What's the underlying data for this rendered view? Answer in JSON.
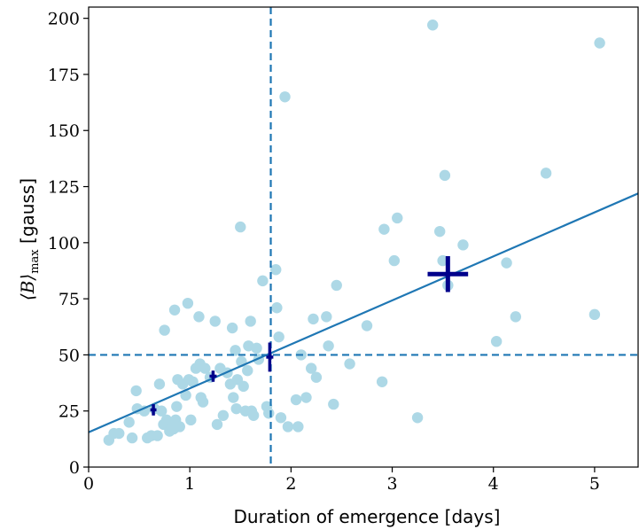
{
  "chart_data": {
    "type": "scatter",
    "xlabel": "Duration of emergence [days]",
    "ylabel": {
      "main": "⟨B⟩",
      "sub": "max",
      "unit": " [gauss]"
    },
    "xlim": [
      0,
      5.43
    ],
    "ylim": [
      0,
      205
    ],
    "xticks": [
      0,
      1,
      2,
      3,
      4,
      5
    ],
    "yticks": [
      0,
      25,
      50,
      75,
      100,
      125,
      150,
      175,
      200
    ],
    "grid": false,
    "colors": {
      "points": "#add8e6",
      "fit_line": "#1f77b4",
      "threshold_lines": "#1f77b4",
      "error_bars": "#00008b",
      "axes": "#000000"
    },
    "points": [
      [
        0.2,
        12
      ],
      [
        0.25,
        15
      ],
      [
        0.3,
        15
      ],
      [
        0.4,
        20
      ],
      [
        0.43,
        13
      ],
      [
        0.47,
        34
      ],
      [
        0.48,
        26
      ],
      [
        0.55,
        25
      ],
      [
        0.58,
        13
      ],
      [
        0.62,
        14
      ],
      [
        0.65,
        26
      ],
      [
        0.68,
        14
      ],
      [
        0.7,
        37
      ],
      [
        0.72,
        25
      ],
      [
        0.74,
        19
      ],
      [
        0.75,
        61
      ],
      [
        0.77,
        21
      ],
      [
        0.8,
        16
      ],
      [
        0.82,
        18
      ],
      [
        0.84,
        17
      ],
      [
        0.85,
        70
      ],
      [
        0.86,
        21
      ],
      [
        0.87,
        27
      ],
      [
        0.88,
        39
      ],
      [
        0.9,
        18
      ],
      [
        0.93,
        37
      ],
      [
        0.96,
        32
      ],
      [
        0.98,
        73
      ],
      [
        0.99,
        39
      ],
      [
        1.01,
        21
      ],
      [
        1.03,
        38
      ],
      [
        1.06,
        44
      ],
      [
        1.09,
        67
      ],
      [
        1.1,
        46
      ],
      [
        1.11,
        31
      ],
      [
        1.13,
        29
      ],
      [
        1.15,
        44
      ],
      [
        1.2,
        40
      ],
      [
        1.25,
        65
      ],
      [
        1.27,
        19
      ],
      [
        1.3,
        44
      ],
      [
        1.33,
        23
      ],
      [
        1.37,
        42
      ],
      [
        1.4,
        37
      ],
      [
        1.42,
        62
      ],
      [
        1.43,
        31
      ],
      [
        1.45,
        52
      ],
      [
        1.46,
        26
      ],
      [
        1.47,
        39
      ],
      [
        1.5,
        107
      ],
      [
        1.51,
        47
      ],
      [
        1.53,
        36
      ],
      [
        1.55,
        25
      ],
      [
        1.57,
        43
      ],
      [
        1.58,
        54
      ],
      [
        1.6,
        65
      ],
      [
        1.61,
        25
      ],
      [
        1.63,
        23
      ],
      [
        1.66,
        53
      ],
      [
        1.68,
        48
      ],
      [
        1.72,
        83
      ],
      [
        1.76,
        27
      ],
      [
        1.78,
        24
      ],
      [
        1.85,
        88
      ],
      [
        1.86,
        71
      ],
      [
        1.88,
        58
      ],
      [
        1.9,
        22
      ],
      [
        1.94,
        165
      ],
      [
        1.97,
        18
      ],
      [
        2.05,
        30
      ],
      [
        2.07,
        18
      ],
      [
        2.1,
        50
      ],
      [
        2.15,
        31
      ],
      [
        2.2,
        44
      ],
      [
        2.22,
        66
      ],
      [
        2.25,
        40
      ],
      [
        2.35,
        67
      ],
      [
        2.37,
        54
      ],
      [
        2.42,
        28
      ],
      [
        2.45,
        81
      ],
      [
        2.58,
        46
      ],
      [
        2.75,
        63
      ],
      [
        2.9,
        38
      ],
      [
        2.92,
        106
      ],
      [
        3.02,
        92
      ],
      [
        3.05,
        111
      ],
      [
        3.25,
        22
      ],
      [
        3.4,
        197
      ],
      [
        3.47,
        105
      ],
      [
        3.5,
        92
      ],
      [
        3.52,
        130
      ],
      [
        3.55,
        81
      ],
      [
        3.7,
        99
      ],
      [
        4.03,
        56
      ],
      [
        4.13,
        91
      ],
      [
        4.22,
        67
      ],
      [
        4.52,
        131
      ],
      [
        5.0,
        68
      ],
      [
        5.05,
        189
      ]
    ],
    "fit_line": {
      "intercept": 15.5,
      "slope": 19.6
    },
    "threshold_lines": {
      "x": 1.8,
      "y": 50
    },
    "error_bars": [
      {
        "x": 0.64,
        "y": 25.5,
        "xerr": 0.03,
        "yerr": 2.5
      },
      {
        "x": 1.23,
        "y": 40.5,
        "xerr": 0.035,
        "yerr": 2.5
      },
      {
        "x": 1.79,
        "y": 49,
        "xerr": 0.035,
        "yerr": 6.5
      },
      {
        "x": 3.55,
        "y": 86,
        "xerr": 0.2,
        "yerr": 8
      }
    ]
  }
}
